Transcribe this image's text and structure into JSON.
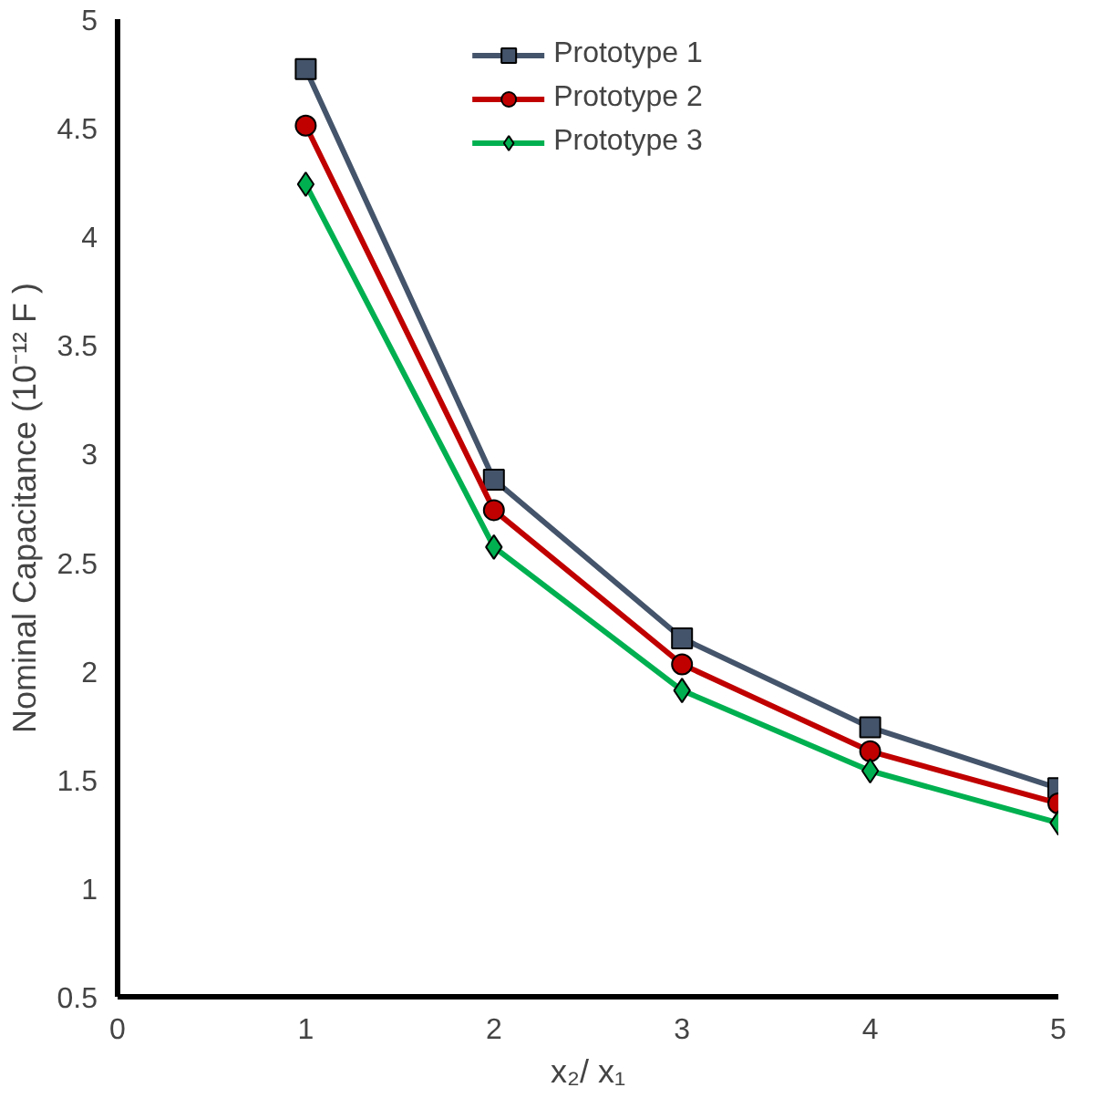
{
  "chart_data": {
    "type": "line",
    "xlabel": "x₂/ x₁",
    "ylabel": "Nominal Capacitance (10⁻¹² F )",
    "x": [
      1,
      2,
      3,
      4,
      5
    ],
    "xlim": [
      0,
      5
    ],
    "xticks": [
      0,
      1,
      2,
      3,
      4,
      5
    ],
    "ylim": [
      0.5,
      5
    ],
    "yticks": [
      0.5,
      1,
      1.5,
      2,
      2.5,
      3,
      3.5,
      4,
      4.5,
      5
    ],
    "grid": false,
    "legend": "top",
    "line_style": "solid",
    "series": [
      {
        "name": "Prototype 1",
        "color": "#44546a",
        "marker": "square",
        "values": [
          4.77,
          2.88,
          2.15,
          1.74,
          1.46
        ]
      },
      {
        "name": "Prototype 2",
        "color": "#c00000",
        "marker": "circle",
        "values": [
          4.51,
          2.74,
          2.03,
          1.63,
          1.39
        ]
      },
      {
        "name": "Prototype 3",
        "color": "#00b050",
        "marker": "diamond",
        "values": [
          4.24,
          2.57,
          1.91,
          1.54,
          1.3
        ]
      }
    ]
  }
}
